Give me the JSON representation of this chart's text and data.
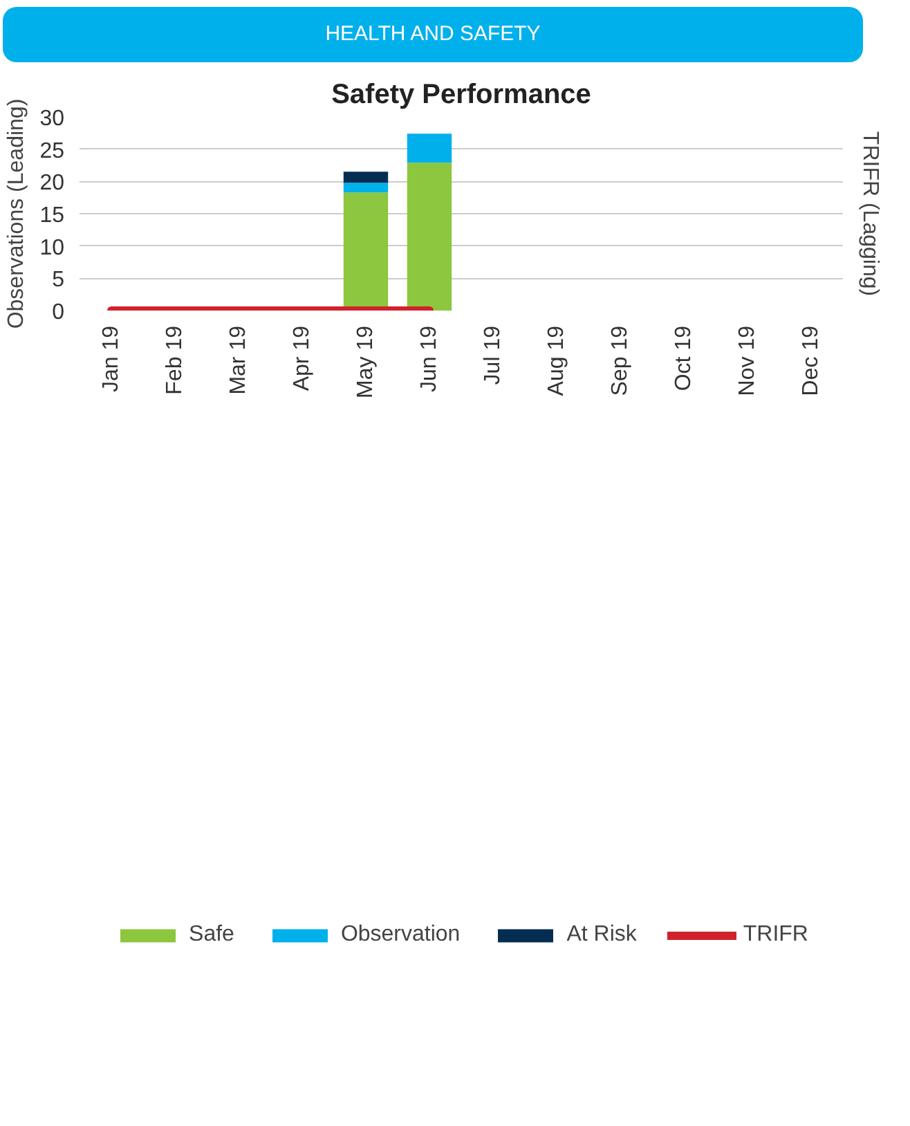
{
  "chart_data": {
    "type": "bar",
    "title": "HEALTH AND SAFETY",
    "subtitle": "Safety Performance",
    "ylabel": "Observations (Leading)",
    "y2label": "TRIFR (Lagging)",
    "categories": [
      "Jan 19",
      "Feb 19",
      "Mar 19",
      "Apr 19",
      "May 19",
      "Jun 19",
      "Jul 19",
      "Aug 19",
      "Sep 19",
      "Oct 19",
      "Nov 19",
      "Dec 19"
    ],
    "stacked": true,
    "series": [
      {
        "name": "Safe",
        "color": "#8dc63f",
        "values": [
          null,
          null,
          null,
          null,
          18.3,
          22.9,
          null,
          null,
          null,
          null,
          null,
          null
        ]
      },
      {
        "name": "Observation",
        "color": "#00b0eb",
        "values": [
          null,
          null,
          null,
          null,
          1.5,
          4.5,
          null,
          null,
          null,
          null,
          null,
          null
        ]
      },
      {
        "name": "At Risk",
        "color": "#052d52",
        "values": [
          null,
          null,
          null,
          null,
          1.7,
          null,
          null,
          null,
          null,
          null,
          null,
          null
        ]
      },
      {
        "name": "TRIFR",
        "type": "line",
        "color": "#d0222b",
        "values": [
          0,
          0,
          0,
          0,
          0,
          0,
          null,
          null,
          null,
          null,
          null,
          null
        ]
      }
    ],
    "ylim": [
      0,
      30
    ],
    "yticks": [
      0,
      5,
      10,
      15,
      20,
      25,
      30
    ],
    "grid": "y",
    "legend": "bottom"
  }
}
